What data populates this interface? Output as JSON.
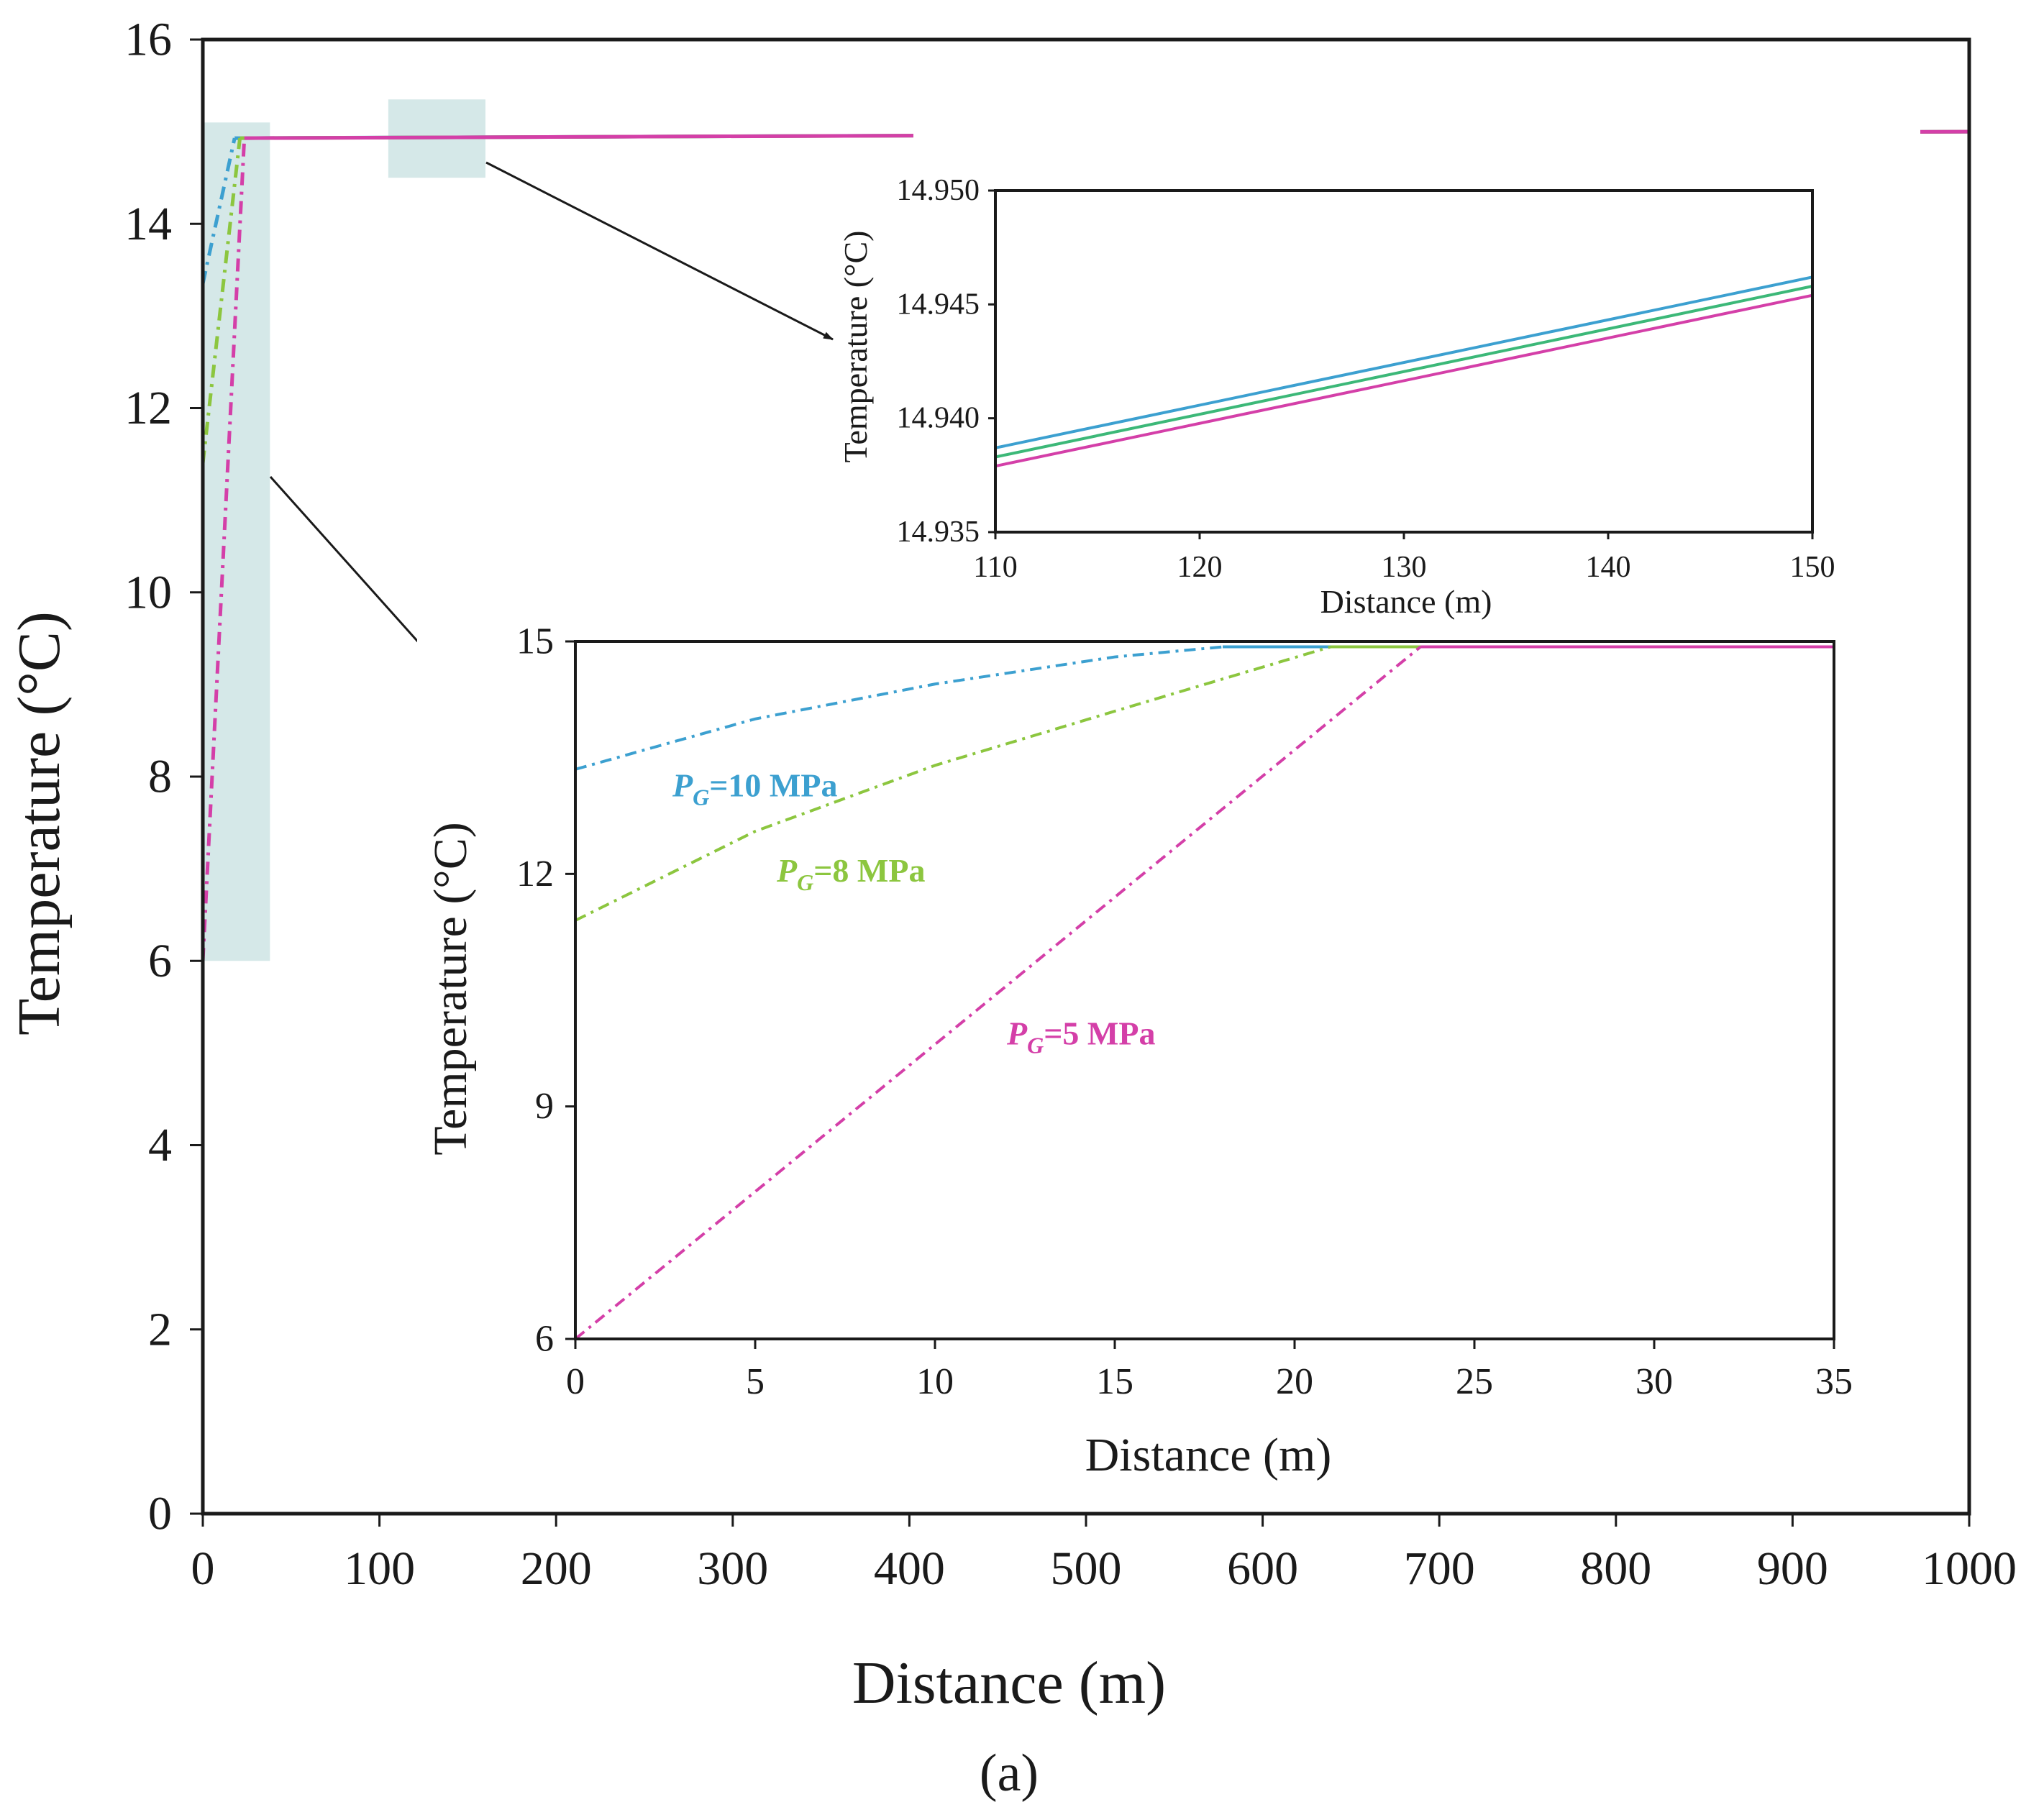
{
  "chart_data": [
    {
      "id": "main",
      "type": "line",
      "xlabel": "Distance (m)",
      "ylabel": "Temperature (°C)",
      "xlim": [
        0,
        1000
      ],
      "ylim": [
        0,
        16
      ],
      "xticks": [
        "0",
        "100",
        "200",
        "300",
        "400",
        "500",
        "600",
        "700",
        "800",
        "900",
        "1000"
      ],
      "yticks": [
        "0",
        "2",
        "4",
        "6",
        "8",
        "10",
        "12",
        "14",
        "16"
      ],
      "grid": false,
      "series": [
        {
          "name": "PG=10 MPa",
          "color": "#3ca0d0",
          "x": [
            0,
            18,
            1000
          ],
          "y": [
            13.35,
            14.93,
            15.0
          ]
        },
        {
          "name": "PG=8 MPa",
          "color": "#8cc63f",
          "x": [
            0,
            21,
            1000
          ],
          "y": [
            11.4,
            14.93,
            15.0
          ]
        },
        {
          "name": "PG=5 MPa",
          "color": "#d43fa8",
          "x": [
            0,
            23.5,
            1000
          ],
          "y": [
            6.0,
            14.93,
            15.0
          ]
        }
      ],
      "zoom_regions": [
        {
          "x": [
            0,
            38
          ],
          "y": [
            6,
            15.1
          ]
        },
        {
          "x": [
            105,
            160
          ],
          "y": [
            14.5,
            15.35
          ]
        }
      ],
      "subfigure_label": "(a)"
    },
    {
      "id": "inset-top",
      "type": "line",
      "xlabel": "Distance (m)",
      "ylabel": "Temperature (°C)",
      "xlim": [
        110,
        150
      ],
      "ylim": [
        14.935,
        14.95
      ],
      "xticks": [
        "110",
        "120",
        "130",
        "140",
        "150"
      ],
      "yticks": [
        "14.935",
        "14.940",
        "14.945",
        "14.950"
      ],
      "series": [
        {
          "name": "PG=10 MPa",
          "color": "#3ca0d0",
          "x": [
            110,
            150
          ],
          "y": [
            14.9387,
            14.9462
          ]
        },
        {
          "name": "PG=8 MPa",
          "color": "#3cb878",
          "x": [
            110,
            150
          ],
          "y": [
            14.9383,
            14.9458
          ]
        },
        {
          "name": "PG=5 MPa",
          "color": "#d43fa8",
          "x": [
            110,
            150
          ],
          "y": [
            14.9379,
            14.9454
          ]
        }
      ]
    },
    {
      "id": "inset-bottom",
      "type": "line",
      "xlabel": "Distance (m)",
      "ylabel": "Temperature (°C)",
      "xlim": [
        0,
        35
      ],
      "ylim": [
        6,
        15
      ],
      "xticks": [
        "0",
        "5",
        "10",
        "15",
        "20",
        "25",
        "30",
        "35"
      ],
      "yticks": [
        "6",
        "9",
        "12",
        "15"
      ],
      "series": [
        {
          "name": "PG=10 MPa",
          "color": "#3ca0d0",
          "x": [
            0,
            5,
            10,
            15,
            18,
            35
          ],
          "y": [
            13.35,
            14.0,
            14.45,
            14.8,
            14.93,
            14.93
          ]
        },
        {
          "name": "PG=8 MPa",
          "color": "#8cc63f",
          "x": [
            0,
            5,
            10,
            15,
            21,
            35
          ],
          "y": [
            11.4,
            12.55,
            13.4,
            14.1,
            14.93,
            14.93
          ]
        },
        {
          "name": "PG=5 MPa",
          "color": "#d43fa8",
          "x": [
            0,
            23.5,
            35
          ],
          "y": [
            6.0,
            14.93,
            14.93
          ]
        }
      ],
      "annotations": [
        {
          "series": "PG=10 MPa",
          "text_main": "P",
          "text_sub": "G",
          "text_rest": "=10 MPa",
          "color": "#3ca0d0",
          "x": 2.7,
          "y": 13.0
        },
        {
          "series": "PG=8 MPa",
          "text_main": "P",
          "text_sub": "G",
          "text_rest": "=8 MPa",
          "color": "#8cc63f",
          "x": 5.6,
          "y": 11.9
        },
        {
          "series": "PG=5 MPa",
          "text_main": "P",
          "text_sub": "G",
          "text_rest": "=5 MPa",
          "color": "#d43fa8",
          "x": 12.0,
          "y": 9.8
        }
      ]
    }
  ]
}
